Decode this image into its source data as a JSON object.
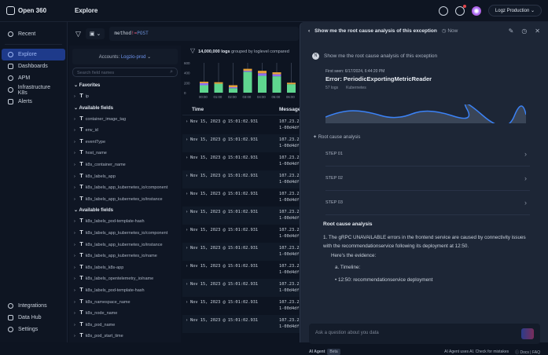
{
  "app": {
    "name": "Open 360",
    "page_title": "Explore",
    "account_selector": "Logz Production"
  },
  "sidebar": {
    "items": [
      {
        "label": "Recent",
        "icon": "history-icon"
      },
      {
        "label": "Explore",
        "icon": "explore-icon",
        "active": true
      },
      {
        "label": "Dashboards",
        "icon": "dashboard-icon"
      },
      {
        "label": "APM",
        "icon": "apm-icon"
      },
      {
        "label": "Infrastructure K8s",
        "icon": "k8s-icon"
      },
      {
        "label": "Alerts",
        "icon": "bell-icon"
      }
    ],
    "bottom": [
      {
        "label": "Integrations",
        "icon": "plug-icon"
      },
      {
        "label": "Data Hub",
        "icon": "database-icon"
      },
      {
        "label": "Settings",
        "icon": "gear-icon"
      }
    ]
  },
  "query": {
    "field": "method",
    "op": "!=",
    "value": "POST"
  },
  "fields": {
    "accounts_label": "Accounts:",
    "accounts_value": "Logzio-prod",
    "search_placeholder": "Search field names",
    "favorites_label": "Favorites",
    "favorites": [
      "ip"
    ],
    "available_label": "Available fields",
    "available": [
      "container_image_tag",
      "env_id",
      "eventType",
      "host_name",
      "k8s_container_name",
      "k8s_labels_app",
      "k8s_labels_app_kubernetes_io/component",
      "k8s_labels_app_kubernetes_io/instance"
    ],
    "available2": [
      "k8s_labels_pod-template-hash",
      "k8s_labels_app_kubernetes_io/component",
      "k8s_labels_app_kubernetes_io/instance",
      "k8s_labels_app_kubernetes_io/name",
      "k8s_labels_k8s-app",
      "k8s_labels_opentelemetry_io/name",
      "k8s_labels_pod-template-hash",
      "k8s_namespace_name",
      "k8s_node_name",
      "k8s_pod_name",
      "k8s_pod_start_time"
    ]
  },
  "chart_data": {
    "type": "bar",
    "title_count": "14,000,000 logs",
    "title_rest": "grouped by loglevel compared",
    "categories": [
      "00:00",
      "01:00",
      "02:00",
      "03:00",
      "04:00",
      "05:00",
      "06:00"
    ],
    "yticks": [
      "0",
      "200",
      "400",
      "600"
    ],
    "ylim": [
      0,
      600
    ],
    "series": [
      {
        "values": [
          150,
          180,
          90,
          420,
          340,
          330,
          170
        ],
        "color": "#5fd68f"
      },
      {
        "values": [
          40,
          0,
          20,
          20,
          50,
          40,
          0
        ],
        "color": "#8f6cf0"
      },
      {
        "values": [
          30,
          30,
          40,
          40,
          50,
          40,
          30
        ],
        "color": "#e6a23c"
      }
    ]
  },
  "table": {
    "headers": [
      "Time",
      "Message"
    ],
    "rows": [
      {
        "time": "Nov 15, 2023 @ 15:01:02.931",
        "msg1": "107.23.2",
        "msg2": "1-00d4df"
      },
      {
        "time": "Nov 15, 2023 @ 15:01:02.931",
        "msg1": "107.23.2",
        "msg2": "1-00d4df"
      },
      {
        "time": "Nov 15, 2023 @ 15:01:02.931",
        "msg1": "107.23.2",
        "msg2": "1-00d4df"
      },
      {
        "time": "Nov 15, 2023 @ 15:01:02.931",
        "msg1": "107.23.2",
        "msg2": "1-00d4df"
      },
      {
        "time": "Nov 15, 2023 @ 15:01:02.931",
        "msg1": "107.23.2",
        "msg2": "1-00d4df"
      },
      {
        "time": "Nov 15, 2023 @ 15:01:02.931",
        "msg1": "107.23.2",
        "msg2": "1-00d4df"
      },
      {
        "time": "Nov 15, 2023 @ 15:01:02.931",
        "msg1": "107.23.2",
        "msg2": "1-00d4df"
      },
      {
        "time": "Nov 15, 2023 @ 15:01:02.931",
        "msg1": "107.23.2",
        "msg2": "1-00d4df"
      },
      {
        "time": "Nov 15, 2023 @ 15:01:02.931",
        "msg1": "107.23.2",
        "msg2": "1-00d4df"
      },
      {
        "time": "Nov 15, 2023 @ 15:01:02.931",
        "msg1": "107.23.2",
        "msg2": "1-00d4df"
      },
      {
        "time": "Nov 15, 2023 @ 15:01:02.931",
        "msg1": "107.23.2",
        "msg2": "1-00d4df"
      },
      {
        "time": "Nov 15, 2023 @ 15:01:02.931",
        "msg1": "107.23.2",
        "msg2": "1-00d4df"
      }
    ]
  },
  "ai_panel": {
    "title": "Show me the root cause analysis of this exception",
    "time": "Now",
    "user_initial": "N",
    "user_message": "Show me the root cause analysis of this exception",
    "error_card": {
      "first_seen": "First seen: 6/17/2024, 6:44:20 PM",
      "title": "Error: PeriodicExportingMetricReader",
      "logs": "57 logs",
      "tag": "Kubernetes"
    },
    "rca_label": "Root cause analysis",
    "steps": [
      "STEP 01",
      "STEP 02",
      "STEP 03"
    ],
    "answer": {
      "heading": "Root cause analysis",
      "p1": "1. The gRPC UNAVAILABLE errors in the frontend service are caused by connectivity issues with the recommendationservice following its deployment at 12:50.",
      "p2": "Here's the evidence:",
      "a": "a. Timeline:",
      "b": "• 12:50: recommendationservice deployment"
    },
    "input_placeholder": "Ask a question about you data",
    "agent_label": "AI Agent",
    "beta": "Beta",
    "disclaimer": "AI Agent uses AI. Check for mistakes",
    "docs": "Docs | FAQ"
  }
}
